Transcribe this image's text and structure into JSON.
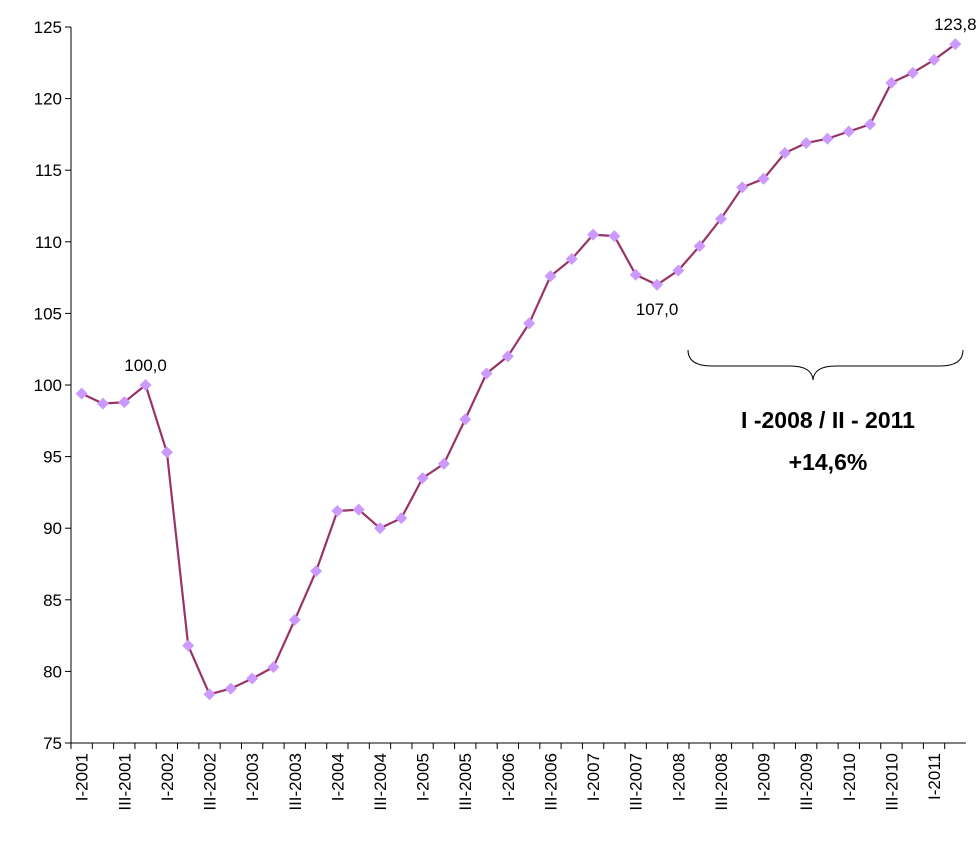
{
  "chart_data": {
    "type": "line",
    "categories": [
      "I-2001",
      null,
      "III-2001",
      null,
      "I-2002",
      null,
      "III-2002",
      null,
      "I-2003",
      null,
      "III-2003",
      null,
      "I-2004",
      null,
      "III-2004",
      null,
      "I-2005",
      null,
      "III-2005",
      null,
      "I-2006",
      null,
      "III-2006",
      null,
      "I-2007",
      null,
      "III-2007",
      null,
      "I-2008",
      null,
      "III-2008",
      null,
      "I-2009",
      null,
      "III-2009",
      null,
      "I-2010",
      null,
      "III-2010",
      null,
      "I-2011",
      null
    ],
    "series": [
      {
        "color": "#993366",
        "marker_color": "#CC99FF",
        "values": [
          99.4,
          98.7,
          98.8,
          100.0,
          95.3,
          81.8,
          78.4,
          78.8,
          79.5,
          80.3,
          83.6,
          87.0,
          91.2,
          91.3,
          90.0,
          90.7,
          93.5,
          94.5,
          97.6,
          100.8,
          102.0,
          104.3,
          107.6,
          108.8,
          110.5,
          110.4,
          107.7,
          107.0,
          108.0,
          109.7,
          111.6,
          113.8,
          114.4,
          116.2,
          116.9,
          117.2,
          117.7,
          118.2,
          121.1,
          121.8,
          122.7,
          123.8
        ],
        "value_labels": [
          null,
          null,
          null,
          "100,0",
          null,
          null,
          null,
          null,
          null,
          null,
          null,
          null,
          null,
          null,
          null,
          null,
          null,
          null,
          null,
          null,
          null,
          null,
          null,
          null,
          null,
          null,
          null,
          "107,0",
          null,
          null,
          null,
          null,
          null,
          null,
          null,
          null,
          null,
          null,
          null,
          null,
          null,
          "123,8"
        ]
      }
    ],
    "ylim": [
      75,
      125
    ],
    "yticks": [
      75,
      80,
      85,
      90,
      95,
      100,
      105,
      110,
      115,
      120,
      125
    ],
    "annotations": [
      "I -2008 / II - 2011",
      "+14,6%"
    ]
  }
}
